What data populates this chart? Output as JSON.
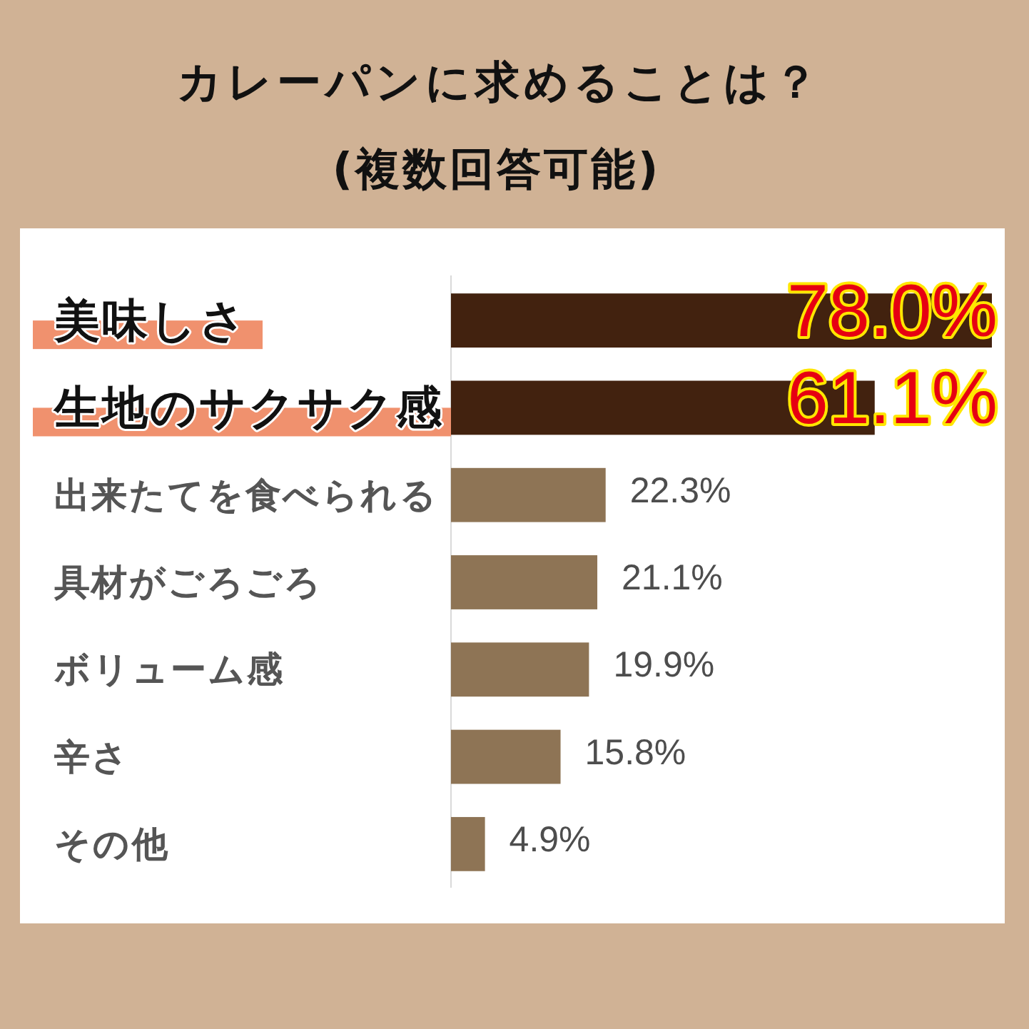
{
  "chart_data": {
    "type": "bar",
    "orientation": "horizontal",
    "title": "カレーパンに求めることは？",
    "subtitle": "(複数回答可能)",
    "categories": [
      "美味しさ",
      "生地のサクサク感",
      "出来たてを食べられる",
      "具材がごろごろ",
      "ボリューム感",
      "辛さ",
      "その他"
    ],
    "values": [
      78.0,
      61.1,
      22.3,
      21.1,
      19.9,
      15.8,
      4.9
    ],
    "colors": [
      "#42220f",
      "#42220f",
      "#8e7455",
      "#8e7455",
      "#8e7455",
      "#8e7455",
      "#8e7455"
    ],
    "value_labels": [
      "78.0%",
      "61.1%",
      "22.3%",
      "21.1%",
      "19.9%",
      "15.8%",
      "4.9%"
    ]
  }
}
